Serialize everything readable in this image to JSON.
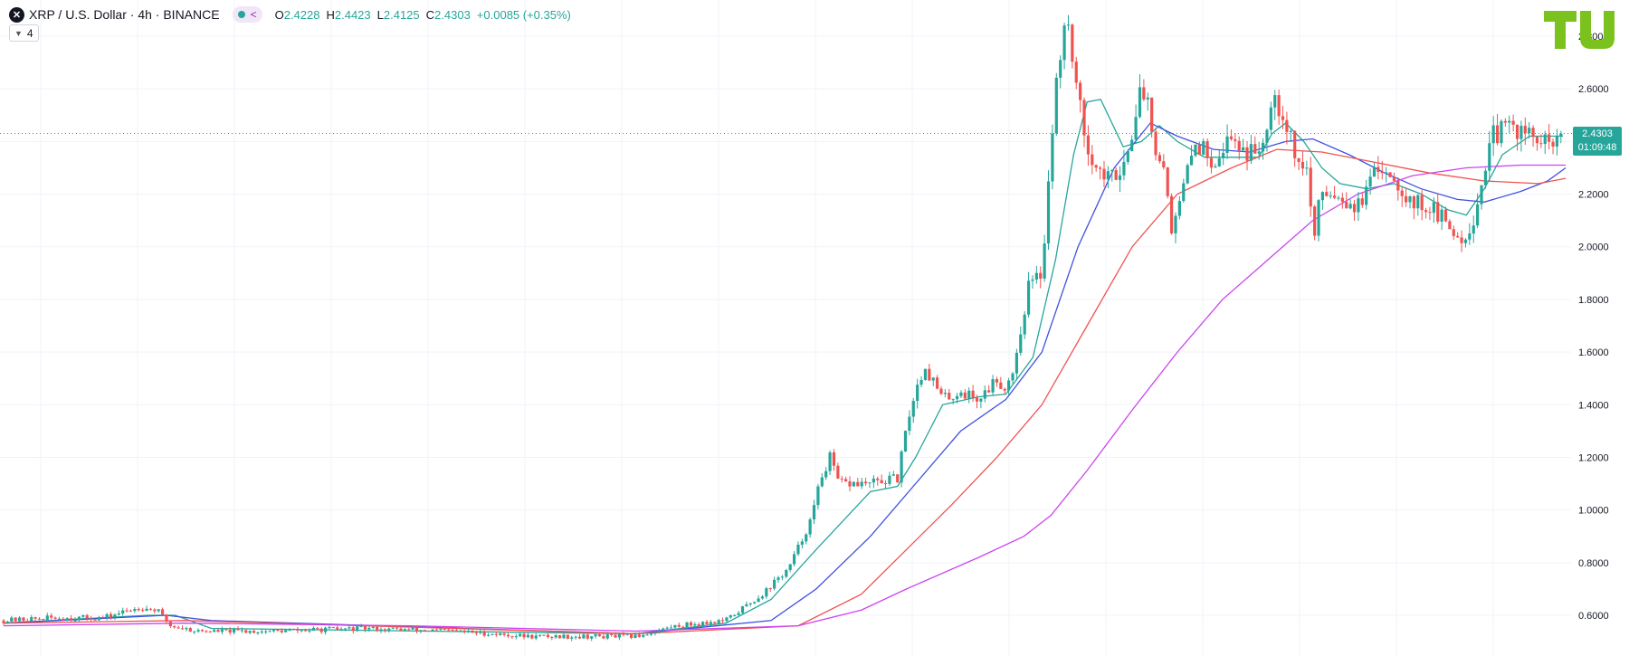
{
  "header": {
    "symbol_icon": "xrp-logo-icon",
    "title": "XRP / U.S. Dollar · 4h · BINANCE",
    "ohlc": {
      "o_label": "O",
      "o_value": "2.4228",
      "h_label": "H",
      "h_value": "2.4423",
      "l_label": "L",
      "l_value": "2.4125",
      "c_label": "C",
      "c_value": "2.4303",
      "change": "+0.0085 (+0.35%)"
    },
    "indicator_count": "4"
  },
  "logo": {
    "name": "TU",
    "color": "#7cc21f"
  },
  "price_tag": {
    "price": "2.4303",
    "countdown": "01:09:48",
    "color": "#26a69a"
  },
  "colors": {
    "up": "#26a69a",
    "down": "#ef5350",
    "ma_fast": "#26a69a",
    "ma_mid": "#3f51e0",
    "ma_slow": "#ef5350",
    "ma_slowest": "#cc44f0"
  },
  "chart_data": {
    "type": "candlestick",
    "interval": "4h",
    "ylim": [
      0.53,
      2.95
    ],
    "y_ticks": [
      "2.8000",
      "2.6000",
      "2.4000",
      "2.2000",
      "2.0000",
      "1.8000",
      "1.6000",
      "1.4000",
      "1.2000",
      "1.0000",
      "0.8000",
      "0.6000"
    ],
    "last_price": 2.4303,
    "grid": true,
    "price_path": [
      [
        0,
        0.58
      ],
      [
        55,
        0.59
      ],
      [
        110,
        0.59
      ],
      [
        150,
        0.63
      ],
      [
        170,
        0.62
      ],
      [
        185,
        0.56
      ],
      [
        215,
        0.54
      ],
      [
        300,
        0.54
      ],
      [
        400,
        0.55
      ],
      [
        500,
        0.54
      ],
      [
        580,
        0.52
      ],
      [
        640,
        0.52
      ],
      [
        700,
        0.52
      ],
      [
        745,
        0.56
      ],
      [
        800,
        0.58
      ],
      [
        840,
        0.68
      ],
      [
        870,
        0.78
      ],
      [
        895,
        0.97
      ],
      [
        905,
        1.12
      ],
      [
        915,
        1.2
      ],
      [
        925,
        1.1
      ],
      [
        960,
        1.1
      ],
      [
        990,
        1.12
      ],
      [
        1005,
        1.4
      ],
      [
        1020,
        1.55
      ],
      [
        1040,
        1.42
      ],
      [
        1060,
        1.45
      ],
      [
        1080,
        1.42
      ],
      [
        1100,
        1.5
      ],
      [
        1110,
        1.46
      ],
      [
        1120,
        1.56
      ],
      [
        1135,
        1.85
      ],
      [
        1150,
        1.9
      ],
      [
        1160,
        2.4
      ],
      [
        1170,
        2.75
      ],
      [
        1180,
        2.85
      ],
      [
        1190,
        2.55
      ],
      [
        1200,
        2.4
      ],
      [
        1210,
        2.3
      ],
      [
        1225,
        2.25
      ],
      [
        1245,
        2.35
      ],
      [
        1255,
        2.55
      ],
      [
        1265,
        2.6
      ],
      [
        1275,
        2.4
      ],
      [
        1285,
        2.3
      ],
      [
        1295,
        2.05
      ],
      [
        1305,
        2.2
      ],
      [
        1320,
        2.4
      ],
      [
        1340,
        2.33
      ],
      [
        1360,
        2.42
      ],
      [
        1380,
        2.35
      ],
      [
        1395,
        2.4
      ],
      [
        1405,
        2.6
      ],
      [
        1415,
        2.52
      ],
      [
        1425,
        2.43
      ],
      [
        1435,
        2.3
      ],
      [
        1445,
        2.3
      ],
      [
        1450,
        2.0
      ],
      [
        1460,
        2.22
      ],
      [
        1480,
        2.2
      ],
      [
        1500,
        2.15
      ],
      [
        1520,
        2.28
      ],
      [
        1530,
        2.31
      ],
      [
        1545,
        2.24
      ],
      [
        1560,
        2.17
      ],
      [
        1580,
        2.15
      ],
      [
        1600,
        2.08
      ],
      [
        1615,
        2.03
      ],
      [
        1630,
        2.12
      ],
      [
        1640,
        2.3
      ],
      [
        1650,
        2.42
      ],
      [
        1670,
        2.46
      ],
      [
        1690,
        2.42
      ],
      [
        1710,
        2.38
      ],
      [
        1727,
        2.4303
      ]
    ],
    "moving_averages": [
      {
        "color": "#26a69a",
        "points": [
          [
            0,
            0.57
          ],
          [
            160,
            0.6
          ],
          [
            190,
            0.6
          ],
          [
            230,
            0.55
          ],
          [
            700,
            0.53
          ],
          [
            800,
            0.57
          ],
          [
            850,
            0.66
          ],
          [
            900,
            0.85
          ],
          [
            960,
            1.07
          ],
          [
            990,
            1.09
          ],
          [
            1010,
            1.2
          ],
          [
            1040,
            1.4
          ],
          [
            1080,
            1.43
          ],
          [
            1110,
            1.44
          ],
          [
            1140,
            1.58
          ],
          [
            1165,
            1.95
          ],
          [
            1185,
            2.35
          ],
          [
            1200,
            2.55
          ],
          [
            1215,
            2.56
          ],
          [
            1240,
            2.38
          ],
          [
            1260,
            2.4
          ],
          [
            1280,
            2.46
          ],
          [
            1300,
            2.4
          ],
          [
            1330,
            2.34
          ],
          [
            1360,
            2.34
          ],
          [
            1390,
            2.34
          ],
          [
            1405,
            2.43
          ],
          [
            1420,
            2.47
          ],
          [
            1440,
            2.4
          ],
          [
            1460,
            2.3
          ],
          [
            1480,
            2.24
          ],
          [
            1510,
            2.22
          ],
          [
            1540,
            2.24
          ],
          [
            1570,
            2.2
          ],
          [
            1600,
            2.14
          ],
          [
            1620,
            2.12
          ],
          [
            1640,
            2.22
          ],
          [
            1660,
            2.35
          ],
          [
            1690,
            2.42
          ],
          [
            1727,
            2.42
          ]
        ]
      },
      {
        "color": "#3f51e0",
        "points": [
          [
            0,
            0.57
          ],
          [
            180,
            0.6
          ],
          [
            230,
            0.58
          ],
          [
            700,
            0.53
          ],
          [
            850,
            0.58
          ],
          [
            900,
            0.7
          ],
          [
            960,
            0.9
          ],
          [
            1010,
            1.1
          ],
          [
            1060,
            1.3
          ],
          [
            1110,
            1.42
          ],
          [
            1150,
            1.6
          ],
          [
            1190,
            2.0
          ],
          [
            1230,
            2.3
          ],
          [
            1270,
            2.47
          ],
          [
            1300,
            2.42
          ],
          [
            1340,
            2.37
          ],
          [
            1380,
            2.36
          ],
          [
            1420,
            2.4
          ],
          [
            1450,
            2.41
          ],
          [
            1490,
            2.35
          ],
          [
            1530,
            2.28
          ],
          [
            1570,
            2.22
          ],
          [
            1610,
            2.18
          ],
          [
            1640,
            2.17
          ],
          [
            1680,
            2.21
          ],
          [
            1710,
            2.25
          ],
          [
            1730,
            2.3
          ]
        ]
      },
      {
        "color": "#ef5350",
        "points": [
          [
            0,
            0.57
          ],
          [
            200,
            0.58
          ],
          [
            400,
            0.56
          ],
          [
            700,
            0.53
          ],
          [
            880,
            0.56
          ],
          [
            950,
            0.68
          ],
          [
            1000,
            0.85
          ],
          [
            1050,
            1.02
          ],
          [
            1100,
            1.2
          ],
          [
            1150,
            1.4
          ],
          [
            1200,
            1.7
          ],
          [
            1250,
            2.0
          ],
          [
            1300,
            2.2
          ],
          [
            1360,
            2.3
          ],
          [
            1410,
            2.37
          ],
          [
            1460,
            2.36
          ],
          [
            1520,
            2.32
          ],
          [
            1580,
            2.28
          ],
          [
            1640,
            2.25
          ],
          [
            1700,
            2.24
          ],
          [
            1730,
            2.26
          ]
        ]
      },
      {
        "color": "#cc44f0",
        "points": [
          [
            0,
            0.56
          ],
          [
            200,
            0.57
          ],
          [
            450,
            0.56
          ],
          [
            700,
            0.54
          ],
          [
            880,
            0.56
          ],
          [
            950,
            0.62
          ],
          [
            1000,
            0.7
          ],
          [
            1080,
            0.82
          ],
          [
            1130,
            0.9
          ],
          [
            1160,
            0.98
          ],
          [
            1200,
            1.15
          ],
          [
            1250,
            1.38
          ],
          [
            1300,
            1.6
          ],
          [
            1350,
            1.8
          ],
          [
            1400,
            1.95
          ],
          [
            1450,
            2.1
          ],
          [
            1500,
            2.2
          ],
          [
            1560,
            2.27
          ],
          [
            1620,
            2.3
          ],
          [
            1680,
            2.31
          ],
          [
            1730,
            2.31
          ]
        ]
      }
    ]
  }
}
